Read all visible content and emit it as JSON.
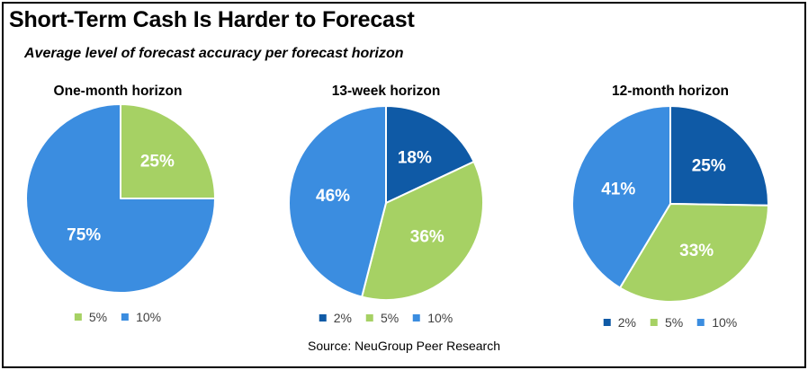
{
  "title": "Short-Term Cash Is Harder to Forecast",
  "subtitle": "Average level of forecast accuracy per forecast horizon",
  "source": "Source: NeuGroup Peer Research",
  "colors": {
    "2%": "#0f5aa6",
    "5%": "#a6d164",
    "10%": "#3b8de0"
  },
  "chart_data": [
    {
      "type": "pie",
      "title": "One-month horizon",
      "categories": [
        "5%",
        "10%"
      ],
      "values": [
        25,
        75
      ],
      "labels": [
        "25%",
        "75%"
      ],
      "legend": [
        "5%",
        "10%"
      ],
      "legend_position": "bottom"
    },
    {
      "type": "pie",
      "title": "13-week horizon",
      "categories": [
        "2%",
        "5%",
        "10%"
      ],
      "values": [
        18,
        36,
        46
      ],
      "labels": [
        "18%",
        "36%",
        "46%"
      ],
      "legend": [
        "2%",
        "5%",
        "10%"
      ],
      "legend_position": "bottom"
    },
    {
      "type": "pie",
      "title": "12-month horizon",
      "categories": [
        "2%",
        "5%",
        "10%"
      ],
      "values": [
        25,
        33,
        41
      ],
      "labels": [
        "25%",
        "33%",
        "41%"
      ],
      "legend": [
        "2%",
        "5%",
        "10%"
      ],
      "legend_position": "bottom"
    }
  ]
}
